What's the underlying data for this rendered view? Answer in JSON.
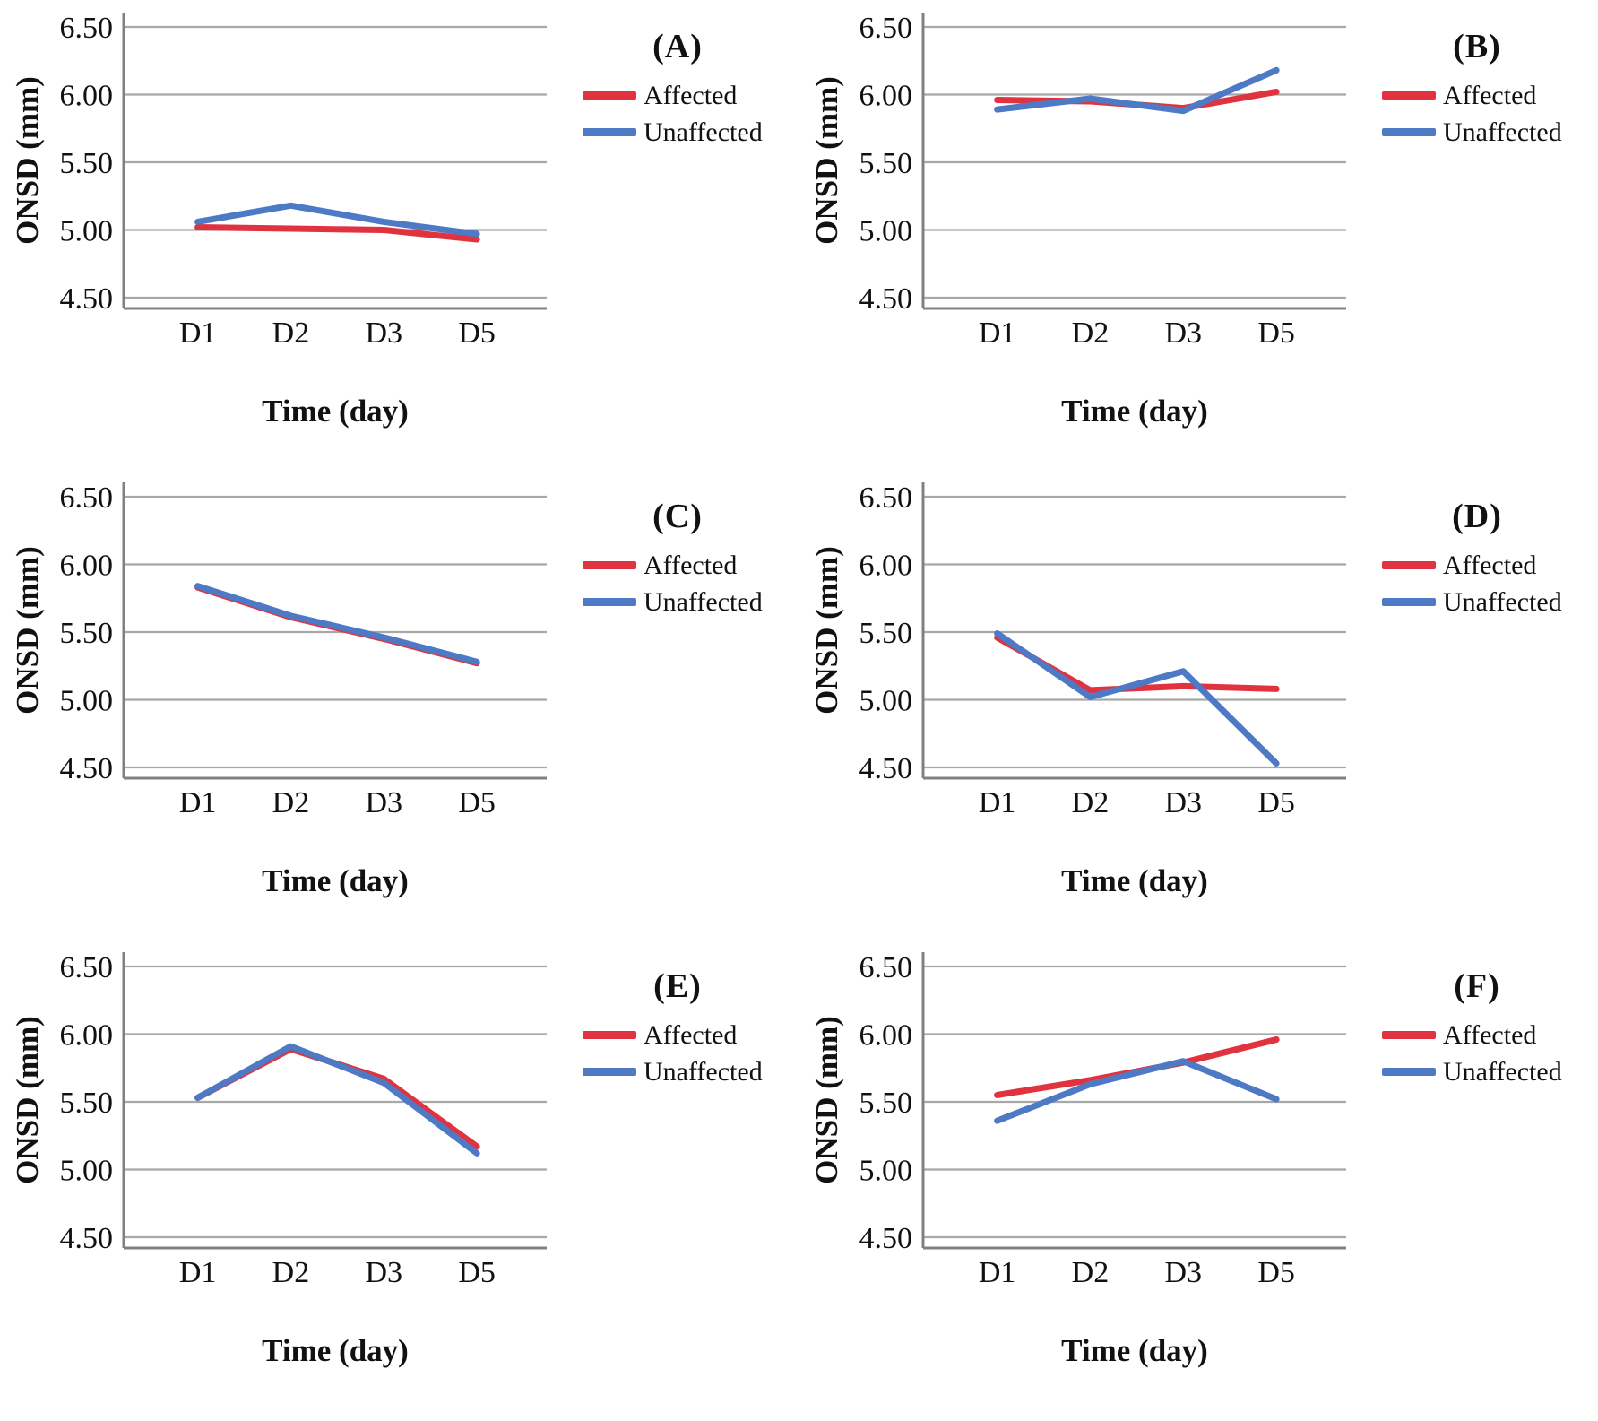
{
  "colors": {
    "affected": "#E0333F",
    "unaffected": "#4E79C4",
    "gridline": "#A8A8A8",
    "axis": "#808080",
    "text": "#111111"
  },
  "legend": {
    "affected_label": "Affected",
    "unaffected_label": "Unaffected"
  },
  "axes": {
    "y_label": "ONSD (mm)",
    "x_label": "Time (day)",
    "ytick_labels": [
      "6.50",
      "6.00",
      "5.50",
      "5.00",
      "4.50"
    ]
  },
  "chart_data": [
    {
      "type": "line",
      "panel_label": "(A)",
      "title": "",
      "xlabel": "Time (day)",
      "ylabel": "ONSD (mm)",
      "categories": [
        "D1",
        "D2",
        "D3",
        "D5"
      ],
      "yticks": [
        6.5,
        6.0,
        5.5,
        5.0,
        4.5
      ],
      "ytick_labels": [
        "6.50",
        "6.00",
        "5.50",
        "5.00",
        "4.50"
      ],
      "ylim": [
        4.42,
        6.6
      ],
      "grid": true,
      "legend_position": "right",
      "series": [
        {
          "name": "Affected",
          "values": [
            5.02,
            5.01,
            5.0,
            4.93
          ]
        },
        {
          "name": "Unaffected",
          "values": [
            5.06,
            5.18,
            5.06,
            4.97
          ]
        }
      ]
    },
    {
      "type": "line",
      "panel_label": "(B)",
      "title": "",
      "xlabel": "Time (day)",
      "ylabel": "ONSD (mm)",
      "categories": [
        "D1",
        "D2",
        "D3",
        "D5"
      ],
      "yticks": [
        6.5,
        6.0,
        5.5,
        5.0,
        4.5
      ],
      "ytick_labels": [
        "6.50",
        "6.00",
        "5.50",
        "5.00",
        "4.50"
      ],
      "ylim": [
        4.42,
        6.6
      ],
      "grid": true,
      "legend_position": "right",
      "series": [
        {
          "name": "Affected",
          "values": [
            5.96,
            5.95,
            5.9,
            6.02
          ]
        },
        {
          "name": "Unaffected",
          "values": [
            5.89,
            5.97,
            5.88,
            6.18
          ]
        }
      ]
    },
    {
      "type": "line",
      "panel_label": "(C)",
      "title": "",
      "xlabel": "Time (day)",
      "ylabel": "ONSD (mm)",
      "categories": [
        "D1",
        "D2",
        "D3",
        "D5"
      ],
      "yticks": [
        6.5,
        6.0,
        5.5,
        5.0,
        4.5
      ],
      "ytick_labels": [
        "6.50",
        "6.00",
        "5.50",
        "5.00",
        "4.50"
      ],
      "ylim": [
        4.42,
        6.6
      ],
      "grid": true,
      "legend_position": "right",
      "series": [
        {
          "name": "Affected",
          "values": [
            5.83,
            5.61,
            5.45,
            5.27
          ]
        },
        {
          "name": "Unaffected",
          "values": [
            5.84,
            5.62,
            5.46,
            5.28
          ]
        }
      ]
    },
    {
      "type": "line",
      "panel_label": "(D)",
      "title": "",
      "xlabel": "Time (day)",
      "ylabel": "ONSD (mm)",
      "categories": [
        "D1",
        "D2",
        "D3",
        "D5"
      ],
      "yticks": [
        6.5,
        6.0,
        5.5,
        5.0,
        4.5
      ],
      "ytick_labels": [
        "6.50",
        "6.00",
        "5.50",
        "5.00",
        "4.50"
      ],
      "ylim": [
        4.42,
        6.6
      ],
      "grid": true,
      "legend_position": "right",
      "series": [
        {
          "name": "Affected",
          "values": [
            5.46,
            5.07,
            5.1,
            5.08
          ]
        },
        {
          "name": "Unaffected",
          "values": [
            5.49,
            5.02,
            5.21,
            4.53
          ]
        }
      ]
    },
    {
      "type": "line",
      "panel_label": "(E)",
      "title": "",
      "xlabel": "Time (day)",
      "ylabel": "ONSD (mm)",
      "categories": [
        "D1",
        "D2",
        "D3",
        "D5"
      ],
      "yticks": [
        6.5,
        6.0,
        5.5,
        5.0,
        4.5
      ],
      "ytick_labels": [
        "6.50",
        "6.00",
        "5.50",
        "5.00",
        "4.50"
      ],
      "ylim": [
        4.42,
        6.6
      ],
      "grid": true,
      "legend_position": "right",
      "series": [
        {
          "name": "Affected",
          "values": [
            5.53,
            5.89,
            5.67,
            5.17
          ]
        },
        {
          "name": "Unaffected",
          "values": [
            5.53,
            5.91,
            5.64,
            5.12
          ]
        }
      ]
    },
    {
      "type": "line",
      "panel_label": "(F)",
      "title": "",
      "xlabel": "Time (day)",
      "ylabel": "ONSD (mm)",
      "categories": [
        "D1",
        "D2",
        "D3",
        "D5"
      ],
      "yticks": [
        6.5,
        6.0,
        5.5,
        5.0,
        4.5
      ],
      "ytick_labels": [
        "6.50",
        "6.00",
        "5.50",
        "5.00",
        "4.50"
      ],
      "ylim": [
        4.42,
        6.6
      ],
      "grid": true,
      "legend_position": "right",
      "series": [
        {
          "name": "Affected",
          "values": [
            5.55,
            5.66,
            5.79,
            5.96
          ]
        },
        {
          "name": "Unaffected",
          "values": [
            5.36,
            5.63,
            5.8,
            5.52
          ]
        }
      ]
    }
  ]
}
